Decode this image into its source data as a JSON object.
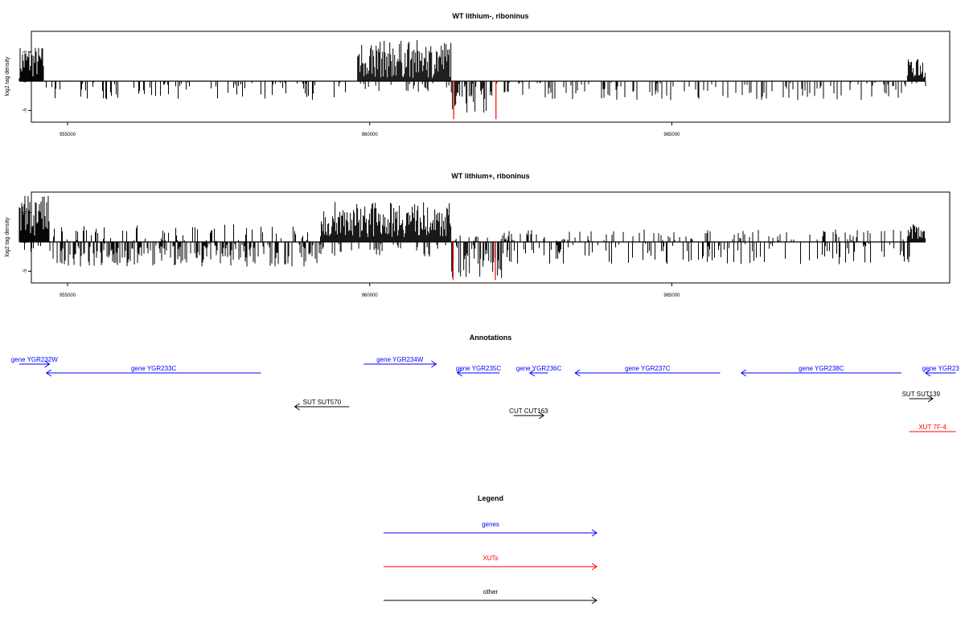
{
  "chart_data": [
    {
      "type": "bar",
      "title": "WT lithium-, riboninus",
      "ylabel": "log2 tag density",
      "xlim": [
        954400,
        969600
      ],
      "ylim": [
        -7,
        8.5
      ],
      "xticks": [
        955000,
        960000,
        965000
      ],
      "xtick_labels": [
        "955000",
        "960000",
        "965000"
      ],
      "yticks": [
        -5,
        0,
        5
      ],
      "ytick_labels": [
        "-5",
        "0",
        "5"
      ],
      "series": [
        {
          "color": "#000000",
          "profile": [
            {
              "x0": 954200,
              "x1": 954600,
              "pos": [
                0.5,
                6.1
              ],
              "neg": [
                0,
                0
              ]
            },
            {
              "x0": 954600,
              "x1": 959800,
              "pos": [
                0,
                0
              ],
              "neg": [
                -0.2,
                -3.2
              ]
            },
            {
              "x0": 959800,
              "x1": 961350,
              "pos": [
                0.5,
                7.0
              ],
              "neg": [
                -0.2,
                -2.0
              ]
            },
            {
              "x0": 961350,
              "x1": 962100,
              "pos": [
                0,
                0
              ],
              "neg": [
                -0.4,
                -5.5
              ]
            },
            {
              "x0": 962100,
              "x1": 968900,
              "pos": [
                0,
                0
              ],
              "neg": [
                -0.2,
                -3.3
              ]
            },
            {
              "x0": 968900,
              "x1": 969200,
              "pos": [
                0.5,
                3.8
              ],
              "neg": [
                -0.2,
                -1.0
              ]
            }
          ]
        },
        {
          "color": "#ff0000",
          "points": [
            {
              "x": 961390,
              "y": -6.5
            },
            {
              "x": 962090,
              "y": -6.5
            }
          ]
        }
      ]
    },
    {
      "type": "bar",
      "title": "WT lithium+, riboninus",
      "ylabel": "log2 tag density",
      "xlim": [
        954400,
        969600
      ],
      "ylim": [
        -7,
        8.5
      ],
      "xticks": [
        955000,
        960000,
        965000
      ],
      "xtick_labels": [
        "955000",
        "960000",
        "965000"
      ],
      "yticks": [
        -5,
        0,
        5
      ],
      "ytick_labels": [
        "-5",
        "0",
        "5"
      ],
      "series": [
        {
          "color": "#000000",
          "profile": [
            {
              "x0": 954200,
              "x1": 954700,
              "pos": [
                0.8,
                8.0
              ],
              "neg": [
                -0.3,
                -1.8
              ]
            },
            {
              "x0": 954700,
              "x1": 959200,
              "pos": [
                0.2,
                3.0
              ],
              "neg": [
                -0.3,
                -4.2
              ]
            },
            {
              "x0": 959200,
              "x1": 961350,
              "pos": [
                0.8,
                6.8
              ],
              "neg": [
                -0.3,
                -2.5
              ]
            },
            {
              "x0": 961350,
              "x1": 962200,
              "pos": [
                0.1,
                1.2
              ],
              "neg": [
                -0.5,
                -6.2
              ]
            },
            {
              "x0": 962200,
              "x1": 968900,
              "pos": [
                0.2,
                2.1
              ],
              "neg": [
                -0.3,
                -3.8
              ]
            },
            {
              "x0": 968900,
              "x1": 969200,
              "pos": [
                0.5,
                3.0
              ],
              "neg": [
                -0.3,
                -3.8
              ]
            }
          ]
        },
        {
          "color": "#ff0000",
          "points": [
            {
              "x": 961380,
              "y": -6.5
            },
            {
              "x": 962080,
              "y": -6.5
            }
          ]
        }
      ]
    }
  ],
  "annotations": {
    "title": "Annotations",
    "items": [
      {
        "label": "gene YGR232W",
        "start": 954200,
        "end": 954700,
        "strand": "+",
        "lane": 0,
        "category": "gene"
      },
      {
        "label": "gene YGR233C",
        "start": 954650,
        "end": 958200,
        "strand": "-",
        "lane": 1,
        "category": "gene"
      },
      {
        "label": "gene YGR234W",
        "start": 959900,
        "end": 961100,
        "strand": "+",
        "lane": 0,
        "category": "gene"
      },
      {
        "label": "gene YGR235C",
        "start": 961450,
        "end": 962150,
        "strand": "-",
        "lane": 1,
        "category": "gene"
      },
      {
        "label": "gene YGR236C",
        "start": 962650,
        "end": 962950,
        "strand": "-",
        "lane": 1,
        "category": "gene"
      },
      {
        "label": "gene YGR237C",
        "start": 963400,
        "end": 965800,
        "strand": "-",
        "lane": 1,
        "category": "gene"
      },
      {
        "label": "gene YGR238C",
        "start": 966150,
        "end": 968800,
        "strand": "-",
        "lane": 1,
        "category": "gene"
      },
      {
        "label": "gene YGR23",
        "start": 969200,
        "end": 969700,
        "strand": "-",
        "lane": 1,
        "category": "gene"
      },
      {
        "label": "SUT SUT570",
        "start": 958760,
        "end": 959660,
        "strand": "-",
        "lane": 2,
        "category": "other"
      },
      {
        "label": "CUT CUT163",
        "start": 962380,
        "end": 962880,
        "strand": "+",
        "lane": 3,
        "category": "other"
      },
      {
        "label": "SUT SUT139",
        "start": 968930,
        "end": 969320,
        "strand": "+",
        "lane": 4,
        "category": "other"
      },
      {
        "label": "XUT 7F-4",
        "start": 968930,
        "end": 969700,
        "strand": "none",
        "lane": 5,
        "category": "xut"
      }
    ]
  },
  "legend": {
    "title": "Legend",
    "items": [
      {
        "label": "genes",
        "color": "#0000ff"
      },
      {
        "label": "XUTs",
        "color": "#ff0000"
      },
      {
        "label": "other",
        "color": "#000000"
      }
    ]
  },
  "colors": {
    "gene": "#0000ff",
    "xut": "#ff0000",
    "other": "#000000"
  }
}
